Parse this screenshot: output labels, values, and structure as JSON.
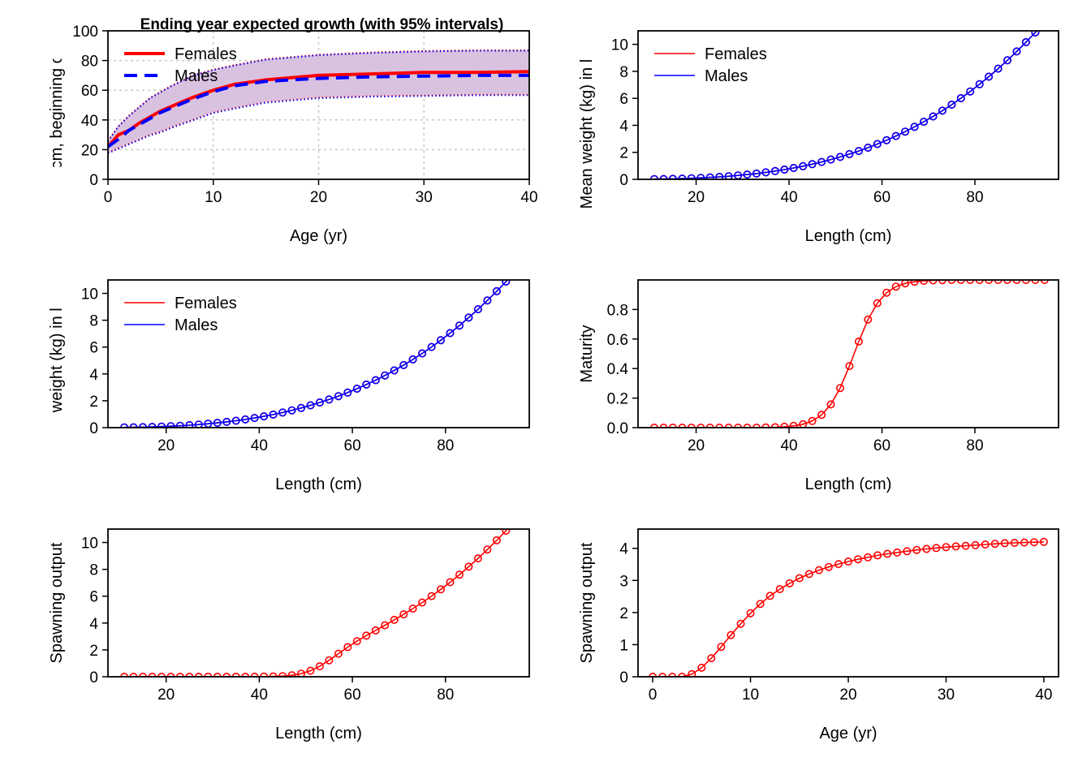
{
  "colors": {
    "female": "#ff0000",
    "male": "#0000ff",
    "band": "#d9c2e0",
    "grid": "#c8c8c8"
  },
  "chart_data": [
    {
      "id": "growth",
      "type": "line",
      "title": "Ending year expected growth (with 95% intervals)",
      "xlabel": "Age (yr)",
      "ylabel": "Length (cm, beginning of the year)",
      "xlim": [
        0,
        40
      ],
      "ylim": [
        0,
        100
      ],
      "xticks": [
        0,
        10,
        20,
        30,
        40
      ],
      "yticks": [
        0,
        20,
        40,
        60,
        80,
        100
      ],
      "grid": true,
      "legend": {
        "position": "top-left",
        "entries": [
          "Females",
          "Males"
        ]
      },
      "x": [
        0,
        1,
        2,
        3,
        4,
        5,
        6,
        8,
        10,
        12,
        15,
        20,
        25,
        30,
        35,
        40
      ],
      "series": [
        {
          "name": "Females",
          "color": "#ff0000",
          "style": "solid",
          "values": [
            22,
            30,
            33,
            38,
            42,
            46,
            49,
            55,
            60,
            64,
            67,
            70,
            71,
            72,
            72,
            72.5
          ]
        },
        {
          "name": "Males",
          "color": "#0000ff",
          "style": "dashed",
          "values": [
            22,
            27,
            33,
            37,
            41,
            45,
            48,
            54,
            59,
            63,
            66,
            68,
            69,
            69.5,
            70,
            70
          ]
        }
      ],
      "interval": {
        "lower": [
          18,
          21,
          24,
          27,
          30,
          32,
          35,
          40,
          45,
          48,
          52,
          55,
          56,
          56.5,
          57,
          57
        ],
        "upper": [
          26,
          36,
          43,
          49,
          55,
          59,
          63,
          70,
          74,
          77,
          81,
          84,
          85.5,
          86.5,
          87,
          87
        ]
      }
    },
    {
      "id": "wt-len-1",
      "type": "line",
      "xlabel": "Length (cm)",
      "ylabel": "Mean weight (kg) in last year",
      "xlim": [
        7.5,
        98
      ],
      "ylim": [
        0,
        11
      ],
      "xticks": [
        20,
        40,
        60,
        80
      ],
      "yticks": [
        0,
        2,
        4,
        6,
        8,
        10
      ],
      "legend": {
        "position": "top-left",
        "entries": [
          "Females",
          "Males"
        ]
      },
      "x": [
        11,
        13,
        15,
        17,
        19,
        21,
        23,
        25,
        27,
        29,
        31,
        33,
        35,
        37,
        39,
        41,
        43,
        45,
        47,
        49,
        51,
        53,
        55,
        57,
        59,
        61,
        63,
        65,
        67,
        69,
        71,
        73,
        75,
        77,
        79,
        81,
        83,
        85,
        87,
        89,
        91,
        93,
        95
      ],
      "series": [
        {
          "name": "Females",
          "color": "#ff0000",
          "values": [
            0.016,
            0.026,
            0.039,
            0.057,
            0.079,
            0.107,
            0.142,
            0.183,
            0.231,
            0.288,
            0.354,
            0.429,
            0.515,
            0.612,
            0.72,
            0.841,
            0.976,
            1.124,
            1.287,
            1.465,
            1.66,
            1.871,
            2.1,
            2.347,
            2.614,
            2.9,
            3.207,
            3.536,
            3.887,
            4.262,
            4.66,
            5.083,
            5.532,
            6.008,
            6.512,
            7.044,
            7.605,
            8.197,
            8.819,
            9.474,
            10.16,
            10.881,
            11.64
          ]
        },
        {
          "name": "Males",
          "color": "#0000ff",
          "values": [
            0.016,
            0.026,
            0.039,
            0.057,
            0.079,
            0.107,
            0.142,
            0.183,
            0.231,
            0.288,
            0.354,
            0.429,
            0.515,
            0.612,
            0.72,
            0.841,
            0.976,
            1.124,
            1.287,
            1.465,
            1.66,
            1.871,
            2.1,
            2.347,
            2.614,
            2.9,
            3.207,
            3.536,
            3.887,
            4.262,
            4.66,
            5.083,
            5.532,
            6.008,
            6.512,
            7.044,
            7.605,
            8.197,
            8.819,
            9.474,
            10.16,
            10.881,
            11.64
          ]
        }
      ]
    },
    {
      "id": "wt-len-2",
      "type": "line",
      "xlabel": "Length (cm)",
      "ylabel": "Mean weight (kg) in last year",
      "xlim": [
        7.5,
        98
      ],
      "ylim": [
        0,
        11
      ],
      "xticks": [
        20,
        40,
        60,
        80
      ],
      "yticks": [
        0,
        2,
        4,
        6,
        8,
        10
      ],
      "legend": {
        "position": "top-left",
        "entries": [
          "Females",
          "Males"
        ]
      },
      "x": [
        11,
        13,
        15,
        17,
        19,
        21,
        23,
        25,
        27,
        29,
        31,
        33,
        35,
        37,
        39,
        41,
        43,
        45,
        47,
        49,
        51,
        53,
        55,
        57,
        59,
        61,
        63,
        65,
        67,
        69,
        71,
        73,
        75,
        77,
        79,
        81,
        83,
        85,
        87,
        89,
        91,
        93,
        95
      ],
      "series": [
        {
          "name": "Females",
          "color": "#ff0000",
          "values": [
            0.016,
            0.026,
            0.039,
            0.057,
            0.079,
            0.107,
            0.142,
            0.183,
            0.231,
            0.288,
            0.354,
            0.429,
            0.515,
            0.612,
            0.72,
            0.841,
            0.976,
            1.124,
            1.287,
            1.465,
            1.66,
            1.871,
            2.1,
            2.347,
            2.614,
            2.9,
            3.207,
            3.536,
            3.887,
            4.262,
            4.66,
            5.083,
            5.532,
            6.008,
            6.512,
            7.044,
            7.605,
            8.197,
            8.819,
            9.474,
            10.16,
            10.881,
            11.64
          ]
        },
        {
          "name": "Males",
          "color": "#0000ff",
          "values": [
            0.016,
            0.026,
            0.039,
            0.057,
            0.079,
            0.107,
            0.142,
            0.183,
            0.231,
            0.288,
            0.354,
            0.429,
            0.515,
            0.612,
            0.72,
            0.841,
            0.976,
            1.124,
            1.287,
            1.465,
            1.66,
            1.871,
            2.1,
            2.347,
            2.614,
            2.9,
            3.207,
            3.536,
            3.887,
            4.262,
            4.66,
            5.083,
            5.532,
            6.008,
            6.512,
            7.044,
            7.605,
            8.197,
            8.819,
            9.474,
            10.16,
            10.881,
            11.64
          ]
        }
      ]
    },
    {
      "id": "maturity",
      "type": "line",
      "xlabel": "Length (cm)",
      "ylabel": "Maturity",
      "xlim": [
        7.5,
        98
      ],
      "ylim": [
        0,
        1
      ],
      "xticks": [
        20,
        40,
        60,
        80
      ],
      "yticks": [
        0,
        0.2,
        0.4,
        0.6,
        0.8
      ],
      "yticklabels": [
        "0.0",
        "0.2",
        "0.4",
        "0.6",
        "0.8"
      ],
      "x": [
        11,
        13,
        15,
        17,
        19,
        21,
        23,
        25,
        27,
        29,
        31,
        33,
        35,
        37,
        39,
        41,
        43,
        45,
        47,
        49,
        51,
        53,
        55,
        57,
        59,
        61,
        63,
        65,
        67,
        69,
        71,
        73,
        75,
        77,
        79,
        81,
        83,
        85,
        87,
        89,
        91,
        93,
        95
      ],
      "series": [
        {
          "name": "",
          "color": "#ff0000",
          "values": [
            0,
            0,
            0,
            0,
            0,
            0,
            0,
            0,
            0,
            0,
            0,
            0,
            0.001,
            0.003,
            0.006,
            0.012,
            0.023,
            0.045,
            0.086,
            0.157,
            0.268,
            0.417,
            0.583,
            0.732,
            0.843,
            0.914,
            0.955,
            0.977,
            0.988,
            0.994,
            0.997,
            0.999,
            1,
            1,
            1,
            1,
            1,
            1,
            1,
            1,
            1,
            1,
            1
          ]
        }
      ]
    },
    {
      "id": "spawn-len",
      "type": "line",
      "xlabel": "Length (cm)",
      "ylabel": "Spawning output",
      "xlim": [
        7.5,
        98
      ],
      "ylim": [
        0,
        11
      ],
      "xticks": [
        20,
        40,
        60,
        80
      ],
      "yticks": [
        0,
        2,
        4,
        6,
        8,
        10
      ],
      "x": [
        11,
        13,
        15,
        17,
        19,
        21,
        23,
        25,
        27,
        29,
        31,
        33,
        35,
        37,
        39,
        41,
        43,
        45,
        47,
        49,
        51,
        53,
        55,
        57,
        59,
        61,
        63,
        65,
        67,
        69,
        71,
        73,
        75,
        77,
        79,
        81,
        83,
        85,
        87,
        89,
        91,
        93,
        95
      ],
      "series": [
        {
          "name": "",
          "color": "#ff0000",
          "values": [
            0,
            0,
            0,
            0,
            0,
            0,
            0,
            0,
            0,
            0,
            0,
            0,
            0,
            0.002,
            0.004,
            0.01,
            0.022,
            0.051,
            0.111,
            0.23,
            0.445,
            0.78,
            1.224,
            1.718,
            2.204,
            2.651,
            3.063,
            3.454,
            3.84,
            4.237,
            4.646,
            5.078,
            5.532,
            6.008,
            6.512,
            7.044,
            7.605,
            8.197,
            8.819,
            9.474,
            10.16,
            10.881,
            11.64
          ]
        }
      ]
    },
    {
      "id": "spawn-age",
      "type": "line",
      "xlabel": "Age (yr)",
      "ylabel": "Spawning output",
      "xlim": [
        -1.5,
        41.5
      ],
      "ylim": [
        0,
        4.6
      ],
      "xticks": [
        0,
        10,
        20,
        30,
        40
      ],
      "yticks": [
        0,
        1,
        2,
        3,
        4
      ],
      "x": [
        0,
        1,
        2,
        3,
        4,
        5,
        6,
        7,
        8,
        9,
        10,
        11,
        12,
        13,
        14,
        15,
        16,
        17,
        18,
        19,
        20,
        21,
        22,
        23,
        24,
        25,
        26,
        27,
        28,
        29,
        30,
        31,
        32,
        33,
        34,
        35,
        36,
        37,
        38,
        39,
        40
      ],
      "series": [
        {
          "name": "",
          "color": "#ff0000",
          "values": [
            0,
            0,
            0,
            0,
            0.08,
            0.28,
            0.58,
            0.93,
            1.3,
            1.65,
            1.98,
            2.27,
            2.52,
            2.73,
            2.91,
            3.07,
            3.2,
            3.32,
            3.42,
            3.51,
            3.59,
            3.66,
            3.72,
            3.78,
            3.83,
            3.87,
            3.91,
            3.95,
            3.98,
            4.01,
            4.04,
            4.06,
            4.08,
            4.1,
            4.12,
            4.14,
            4.16,
            4.17,
            4.18,
            4.19,
            4.2
          ]
        }
      ]
    }
  ]
}
